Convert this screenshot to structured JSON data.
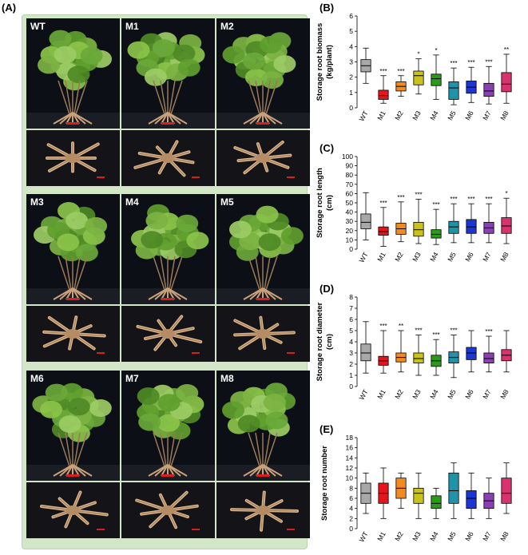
{
  "photo_panel": {
    "label": "(A)",
    "cells": [
      {
        "label": "WT"
      },
      {
        "label": "M1"
      },
      {
        "label": "M2"
      },
      {
        "label": "M3"
      },
      {
        "label": "M4"
      },
      {
        "label": "M5"
      },
      {
        "label": "M6"
      },
      {
        "label": "M7"
      },
      {
        "label": "M8"
      }
    ]
  },
  "colors": {
    "WT": "#a8a8a8",
    "M1": "#e8141c",
    "M2": "#f28a22",
    "M3": "#c9c21a",
    "M4": "#2a9a1a",
    "M5": "#1f93a8",
    "M6": "#1c36d6",
    "M7": "#8a3fb4",
    "M8": "#d9336f"
  },
  "chart_data": [
    {
      "id": "B",
      "label": "(B)",
      "type": "box",
      "ylabel": [
        "Storage root biomass",
        "(kg/plant)"
      ],
      "ylim": [
        0,
        6
      ],
      "yticks": [
        0,
        1,
        2,
        3,
        4,
        5,
        6
      ],
      "categories": [
        "WT",
        "M1",
        "M2",
        "M3",
        "M4",
        "M5",
        "M6",
        "M7",
        "M8"
      ],
      "boxes": [
        {
          "min": 1.6,
          "q1": 2.35,
          "median": 2.75,
          "q3": 3.15,
          "max": 3.9,
          "sig": ""
        },
        {
          "min": 0.3,
          "q1": 0.55,
          "median": 0.8,
          "q3": 1.15,
          "max": 2.1,
          "sig": "***"
        },
        {
          "min": 0.75,
          "q1": 1.1,
          "median": 1.4,
          "q3": 1.7,
          "max": 2.1,
          "sig": "***"
        },
        {
          "min": 0.9,
          "q1": 1.5,
          "median": 2.1,
          "q3": 2.4,
          "max": 3.2,
          "sig": "*"
        },
        {
          "min": 0.55,
          "q1": 1.45,
          "median": 1.9,
          "q3": 2.2,
          "max": 3.45,
          "sig": "*"
        },
        {
          "min": 0.2,
          "q1": 0.55,
          "median": 1.3,
          "q3": 1.7,
          "max": 2.6,
          "sig": "***"
        },
        {
          "min": 0.35,
          "q1": 0.95,
          "median": 1.35,
          "q3": 1.75,
          "max": 2.65,
          "sig": "***"
        },
        {
          "min": 0.25,
          "q1": 0.75,
          "median": 1.1,
          "q3": 1.6,
          "max": 2.7,
          "sig": "***"
        },
        {
          "min": 0.3,
          "q1": 1.05,
          "median": 1.55,
          "q3": 2.3,
          "max": 3.5,
          "sig": "**"
        }
      ]
    },
    {
      "id": "C",
      "label": "(C)",
      "type": "box",
      "ylabel": [
        "Storage root length",
        "(cm)"
      ],
      "ylim": [
        0,
        100
      ],
      "yticks": [
        0,
        10,
        20,
        30,
        40,
        50,
        60,
        70,
        80,
        90,
        100
      ],
      "categories": [
        "WT",
        "M1",
        "M2",
        "M3",
        "M4",
        "M5",
        "M6",
        "M7",
        "M8"
      ],
      "boxes": [
        {
          "min": 10,
          "q1": 22,
          "median": 29,
          "q3": 38,
          "max": 61,
          "sig": ""
        },
        {
          "min": 3,
          "q1": 15,
          "median": 19,
          "q3": 24,
          "max": 45,
          "sig": "***"
        },
        {
          "min": 8,
          "q1": 16,
          "median": 22,
          "q3": 28,
          "max": 51,
          "sig": "***"
        },
        {
          "min": 6,
          "q1": 14,
          "median": 21,
          "q3": 29,
          "max": 54,
          "sig": "***"
        },
        {
          "min": 5,
          "q1": 12,
          "median": 16,
          "q3": 21,
          "max": 43,
          "sig": "***"
        },
        {
          "min": 7,
          "q1": 17,
          "median": 24,
          "q3": 30,
          "max": 49,
          "sig": "***"
        },
        {
          "min": 7,
          "q1": 17,
          "median": 24,
          "q3": 32,
          "max": 49,
          "sig": "***"
        },
        {
          "min": 7,
          "q1": 17,
          "median": 23,
          "q3": 29,
          "max": 49,
          "sig": "***"
        },
        {
          "min": 6,
          "q1": 17,
          "median": 25,
          "q3": 34,
          "max": 55,
          "sig": "*"
        }
      ]
    },
    {
      "id": "D",
      "label": "(D)",
      "type": "box",
      "ylabel": [
        "Storage root diameter",
        "(cm)"
      ],
      "ylim": [
        0,
        8
      ],
      "yticks": [
        0,
        1,
        2,
        3,
        4,
        5,
        6,
        7,
        8
      ],
      "categories": [
        "WT",
        "M1",
        "M2",
        "M3",
        "M4",
        "M5",
        "M6",
        "M7",
        "M8"
      ],
      "boxes": [
        {
          "min": 1.2,
          "q1": 2.3,
          "median": 3.0,
          "q3": 3.8,
          "max": 5.8,
          "sig": ""
        },
        {
          "min": 1.2,
          "q1": 1.9,
          "median": 2.3,
          "q3": 2.7,
          "max": 5.0,
          "sig": "***"
        },
        {
          "min": 1.3,
          "q1": 2.2,
          "median": 2.6,
          "q3": 3.0,
          "max": 5.0,
          "sig": "**"
        },
        {
          "min": 1.0,
          "q1": 2.1,
          "median": 2.5,
          "q3": 3.0,
          "max": 4.6,
          "sig": "***"
        },
        {
          "min": 1.0,
          "q1": 1.8,
          "median": 2.3,
          "q3": 2.8,
          "max": 4.2,
          "sig": "***"
        },
        {
          "min": 0.8,
          "q1": 2.1,
          "median": 2.6,
          "q3": 3.1,
          "max": 4.6,
          "sig": "***"
        },
        {
          "min": 1.3,
          "q1": 2.4,
          "median": 3.0,
          "q3": 3.5,
          "max": 5.0,
          "sig": ""
        },
        {
          "min": 1.3,
          "q1": 2.1,
          "median": 2.5,
          "q3": 3.0,
          "max": 4.5,
          "sig": "***"
        },
        {
          "min": 1.3,
          "q1": 2.3,
          "median": 2.8,
          "q3": 3.3,
          "max": 5.0,
          "sig": ""
        }
      ]
    },
    {
      "id": "E",
      "label": "(E)",
      "type": "box",
      "ylabel": [
        "Storage root number"
      ],
      "ylim": [
        0,
        18
      ],
      "yticks": [
        0,
        2,
        4,
        6,
        8,
        10,
        12,
        14,
        16,
        18
      ],
      "categories": [
        "WT",
        "M1",
        "M2",
        "M3",
        "M4",
        "M5",
        "M6",
        "M7",
        "M8"
      ],
      "boxes": [
        {
          "min": 3,
          "q1": 5,
          "median": 7,
          "q3": 9,
          "max": 11,
          "sig": ""
        },
        {
          "min": 2,
          "q1": 5,
          "median": 7,
          "q3": 9,
          "max": 12,
          "sig": ""
        },
        {
          "min": 4,
          "q1": 6,
          "median": 8,
          "q3": 10,
          "max": 11,
          "sig": ""
        },
        {
          "min": 2,
          "q1": 5,
          "median": 7,
          "q3": 8,
          "max": 11,
          "sig": ""
        },
        {
          "min": 2,
          "q1": 4,
          "median": 5,
          "q3": 6.5,
          "max": 8,
          "sig": ""
        },
        {
          "min": 2,
          "q1": 5,
          "median": 7.5,
          "q3": 11,
          "max": 13,
          "sig": ""
        },
        {
          "min": 2,
          "q1": 4,
          "median": 6,
          "q3": 7.5,
          "max": 11,
          "sig": ""
        },
        {
          "min": 2,
          "q1": 4,
          "median": 5.5,
          "q3": 7,
          "max": 10,
          "sig": ""
        },
        {
          "min": 3,
          "q1": 5,
          "median": 7,
          "q3": 10,
          "max": 13,
          "sig": ""
        }
      ]
    }
  ]
}
